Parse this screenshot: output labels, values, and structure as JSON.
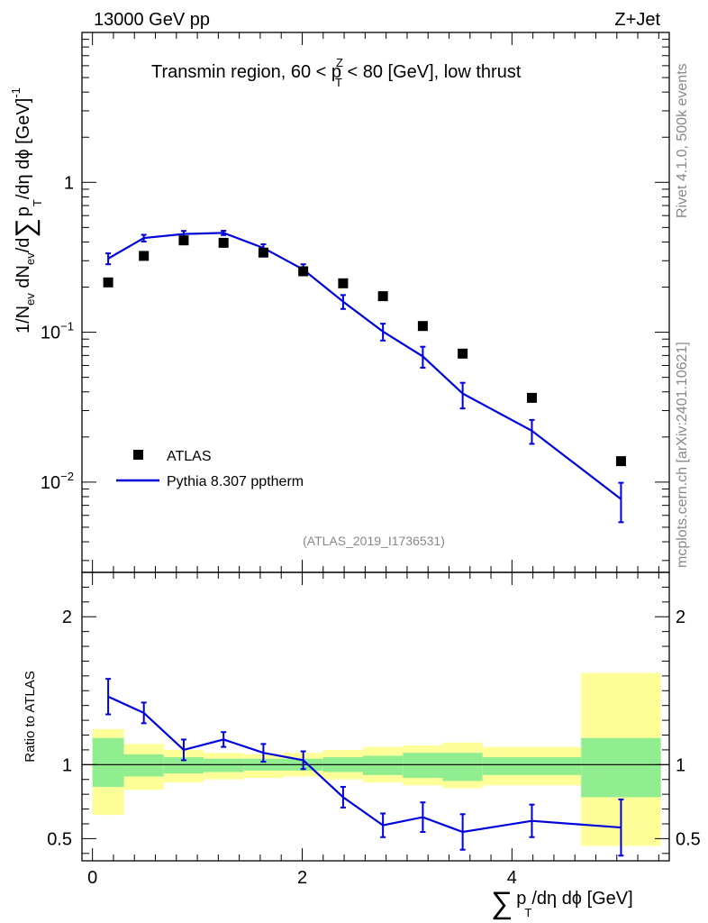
{
  "header": {
    "left": "13000 GeV pp",
    "right": "Z+Jet"
  },
  "side_labels": {
    "rivet": "Rivet 4.1.0,  500k events",
    "mcplots": "mcplots.cern.ch [arXiv:2401.10621]"
  },
  "chart_data": {
    "type": "line",
    "title": "Transmin region, 60 < p_T^Z < 80 [GeV], low thrust",
    "title_parts": [
      "Transmin region, 60 < p",
      "Z",
      "T",
      " < 80 [GeV], low thrust"
    ],
    "analysis_id": "(ATLAS_2019_I1736531)",
    "xlabel": "∑ p_T/dη dϕ [GeV]",
    "xlabel_parts": [
      "∑",
      "p",
      "T",
      "/dη dϕ [GeV]"
    ],
    "ylabel": "1/N_ev dN_ev/d∑ p_T/dη dϕ [GeV]^-1",
    "ylabel_parts": [
      "1/N",
      "ev",
      " dN",
      "ev",
      "/d",
      "∑",
      "p",
      "T",
      "/dη dϕ  [GeV]",
      "-1"
    ],
    "xlim": [
      -0.1,
      5.5
    ],
    "ylim": [
      0.0025,
      10
    ],
    "yscale": "log",
    "x_ticks": [
      "0",
      "2",
      "4"
    ],
    "x_tick_values": [
      0,
      2,
      4
    ],
    "y_ticks": [
      {
        "value": 1,
        "label": "1",
        "exp": ""
      },
      {
        "value": 0.1,
        "label": "10",
        "exp": "−1"
      },
      {
        "value": 0.01,
        "label": "10",
        "exp": "−2"
      }
    ],
    "legend": {
      "position": "bottom-left",
      "entries": [
        "ATLAS",
        "Pythia 8.307 pptherm"
      ]
    },
    "bins": [
      {
        "lo": 0,
        "hi": 0.3
      },
      {
        "lo": 0.3,
        "hi": 0.68
      },
      {
        "lo": 0.68,
        "hi": 1.06
      },
      {
        "lo": 1.06,
        "hi": 1.44
      },
      {
        "lo": 1.44,
        "hi": 1.82
      },
      {
        "lo": 1.82,
        "hi": 2.2
      },
      {
        "lo": 2.2,
        "hi": 2.58
      },
      {
        "lo": 2.58,
        "hi": 2.96
      },
      {
        "lo": 2.96,
        "hi": 3.34
      },
      {
        "lo": 3.34,
        "hi": 3.72
      },
      {
        "lo": 3.72,
        "hi": 4.66
      },
      {
        "lo": 4.66,
        "hi": 5.42
      }
    ],
    "series": [
      {
        "name": "ATLAS",
        "color": "#000000",
        "x": [
          0.15,
          0.49,
          0.87,
          1.25,
          1.63,
          2.01,
          2.39,
          2.77,
          3.15,
          3.53,
          4.19,
          5.04
        ],
        "values": [
          0.215,
          0.323,
          0.41,
          0.395,
          0.34,
          0.255,
          0.212,
          0.174,
          0.11,
          0.072,
          0.0365,
          0.0138
        ]
      },
      {
        "name": "Pythia 8.307 pptherm",
        "color": "#0000dd",
        "x": [
          0.15,
          0.49,
          0.87,
          1.25,
          1.63,
          2.01,
          2.39,
          2.77,
          3.15,
          3.53,
          4.19,
          5.04
        ],
        "values": [
          0.31,
          0.425,
          0.452,
          0.46,
          0.365,
          0.262,
          0.16,
          0.101,
          0.069,
          0.039,
          0.022,
          0.0077
        ],
        "err_lo": [
          0.026,
          0.022,
          0.022,
          0.015,
          0.021,
          0.022,
          0.017,
          0.013,
          0.011,
          0.008,
          0.004,
          0.0023
        ],
        "err_hi": [
          0.026,
          0.022,
          0.022,
          0.015,
          0.021,
          0.022,
          0.017,
          0.013,
          0.011,
          0.007,
          0.004,
          0.0022
        ]
      }
    ],
    "ratio": {
      "ylabel": "Ratio to ATLAS",
      "ylim": [
        0.35,
        2.3
      ],
      "y_ticks": [
        "0.5",
        "1",
        "2"
      ],
      "y_tick_values": [
        0.5,
        1,
        2
      ],
      "values": [
        1.46,
        1.35,
        1.1,
        1.17,
        1.08,
        1.03,
        0.78,
        0.59,
        0.645,
        0.545,
        0.62,
        0.575
      ],
      "err": [
        0.12,
        0.07,
        0.07,
        0.05,
        0.06,
        0.06,
        0.07,
        0.08,
        0.1,
        0.12,
        0.11,
        0.19
      ],
      "band_inner": [
        [
          0.85,
          1.18
        ],
        [
          0.92,
          1.07
        ],
        [
          0.94,
          1.05
        ],
        [
          0.95,
          1.04
        ],
        [
          0.96,
          1.04
        ],
        [
          0.96,
          1.04
        ],
        [
          0.95,
          1.05
        ],
        [
          0.93,
          1.06
        ],
        [
          0.91,
          1.08
        ],
        [
          0.89,
          1.08
        ],
        [
          0.93,
          1.05
        ],
        [
          0.78,
          1.18
        ]
      ],
      "band_outer": [
        [
          0.66,
          1.24
        ],
        [
          0.83,
          1.14
        ],
        [
          0.88,
          1.1
        ],
        [
          0.9,
          1.08
        ],
        [
          0.91,
          1.07
        ],
        [
          0.92,
          1.08
        ],
        [
          0.9,
          1.1
        ],
        [
          0.88,
          1.12
        ],
        [
          0.86,
          1.13
        ],
        [
          0.84,
          1.15
        ],
        [
          0.86,
          1.12
        ],
        [
          0.45,
          1.62
        ]
      ],
      "band_colors": {
        "inner": "#90ee90",
        "outer": "#ffff99"
      }
    }
  }
}
